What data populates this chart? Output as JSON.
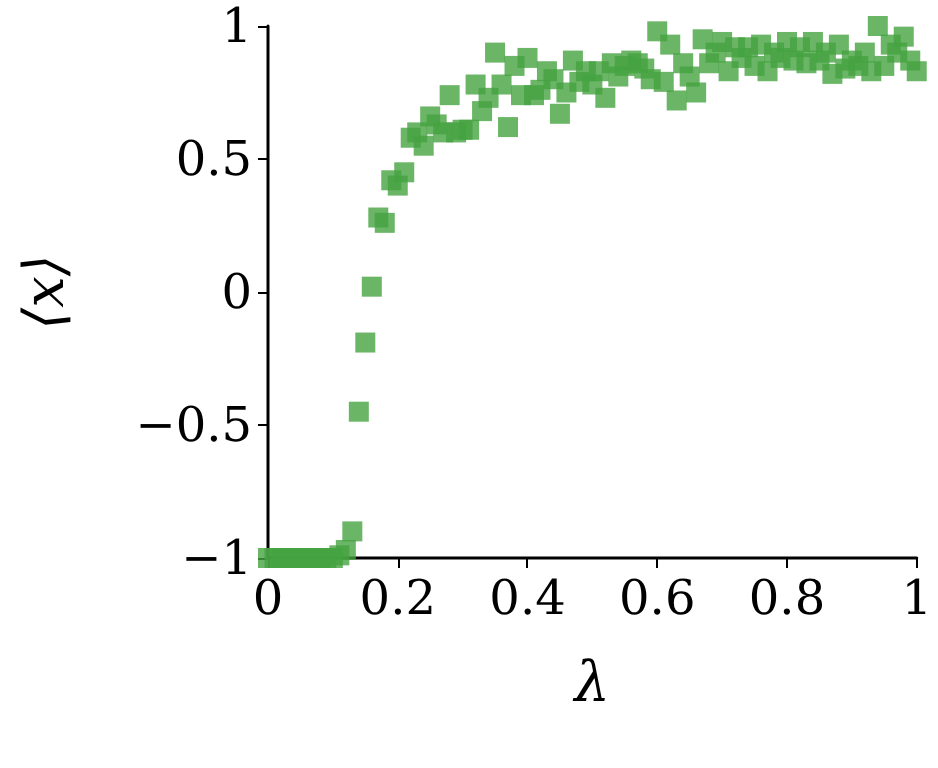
{
  "chart_data": {
    "type": "scatter",
    "xlabel": "λ",
    "ylabel": "⟨x⟩",
    "marker": "square",
    "grid": false,
    "color": "#45a340",
    "x": [
      0,
      0.01,
      0.02,
      0.03,
      0.04,
      0.05,
      0.06,
      0.07,
      0.08,
      0.09,
      0.1,
      0.11,
      0.12,
      0.13,
      0.14,
      0.15,
      0.16,
      0.17,
      0.18,
      0.19,
      0.2,
      0.21,
      0.22,
      0.23,
      0.24,
      0.25,
      0.26,
      0.27,
      0.28,
      0.29,
      0.3,
      0.31,
      0.32,
      0.33,
      0.34,
      0.35,
      0.36,
      0.37,
      0.38,
      0.39,
      0.4,
      0.41,
      0.42,
      0.43,
      0.44,
      0.45,
      0.46,
      0.47,
      0.48,
      0.49,
      0.5,
      0.51,
      0.52,
      0.53,
      0.54,
      0.55,
      0.56,
      0.57,
      0.58,
      0.59,
      0.6,
      0.61,
      0.62,
      0.63,
      0.64,
      0.65,
      0.66,
      0.67,
      0.68,
      0.69,
      0.7,
      0.71,
      0.72,
      0.73,
      0.74,
      0.75,
      0.76,
      0.77,
      0.78,
      0.79,
      0.8,
      0.81,
      0.82,
      0.83,
      0.84,
      0.85,
      0.86,
      0.87,
      0.88,
      0.89,
      0.9,
      0.91,
      0.92,
      0.93,
      0.94,
      0.95,
      0.96,
      0.97,
      0.98,
      0.99,
      1
    ],
    "values": [
      -1,
      -1,
      -1,
      -1,
      -1,
      -1,
      -1,
      -1,
      -1,
      -1,
      -1,
      -0.99,
      -0.97,
      -0.9,
      -0.45,
      -0.19,
      0.02,
      0.28,
      0.26,
      0.42,
      0.4,
      0.45,
      0.58,
      0.6,
      0.55,
      0.66,
      0.63,
      0.6,
      0.74,
      0.6,
      0.61,
      0.61,
      0.78,
      0.68,
      0.73,
      0.9,
      0.78,
      0.62,
      0.85,
      0.74,
      0.88,
      0.74,
      0.76,
      0.83,
      0.8,
      0.67,
      0.75,
      0.87,
      0.79,
      0.83,
      0.78,
      0.83,
      0.73,
      0.86,
      0.81,
      0.85,
      0.87,
      0.86,
      0.84,
      0.8,
      0.98,
      0.79,
      0.93,
      0.72,
      0.86,
      0.81,
      0.75,
      0.95,
      0.86,
      0.9,
      0.94,
      0.83,
      0.92,
      0.88,
      0.92,
      0.85,
      0.93,
      0.83,
      0.9,
      0.88,
      0.94,
      0.87,
      0.92,
      0.86,
      0.94,
      0.87,
      0.9,
      0.82,
      0.93,
      0.84,
      0.87,
      0.85,
      0.9,
      0.83,
      1,
      0.85,
      0.93,
      0.9,
      0.96,
      0.87,
      0.83
    ],
    "xlim": [
      0,
      1
    ],
    "xticks": [
      0,
      0.2,
      0.4,
      0.6,
      0.8,
      1
    ],
    "ylim": [
      -1,
      1
    ],
    "yticks": [
      {
        "value": -1,
        "label": "−1"
      },
      {
        "value": -0.5,
        "label": "−0.5"
      },
      0,
      0.5,
      1
    ]
  }
}
